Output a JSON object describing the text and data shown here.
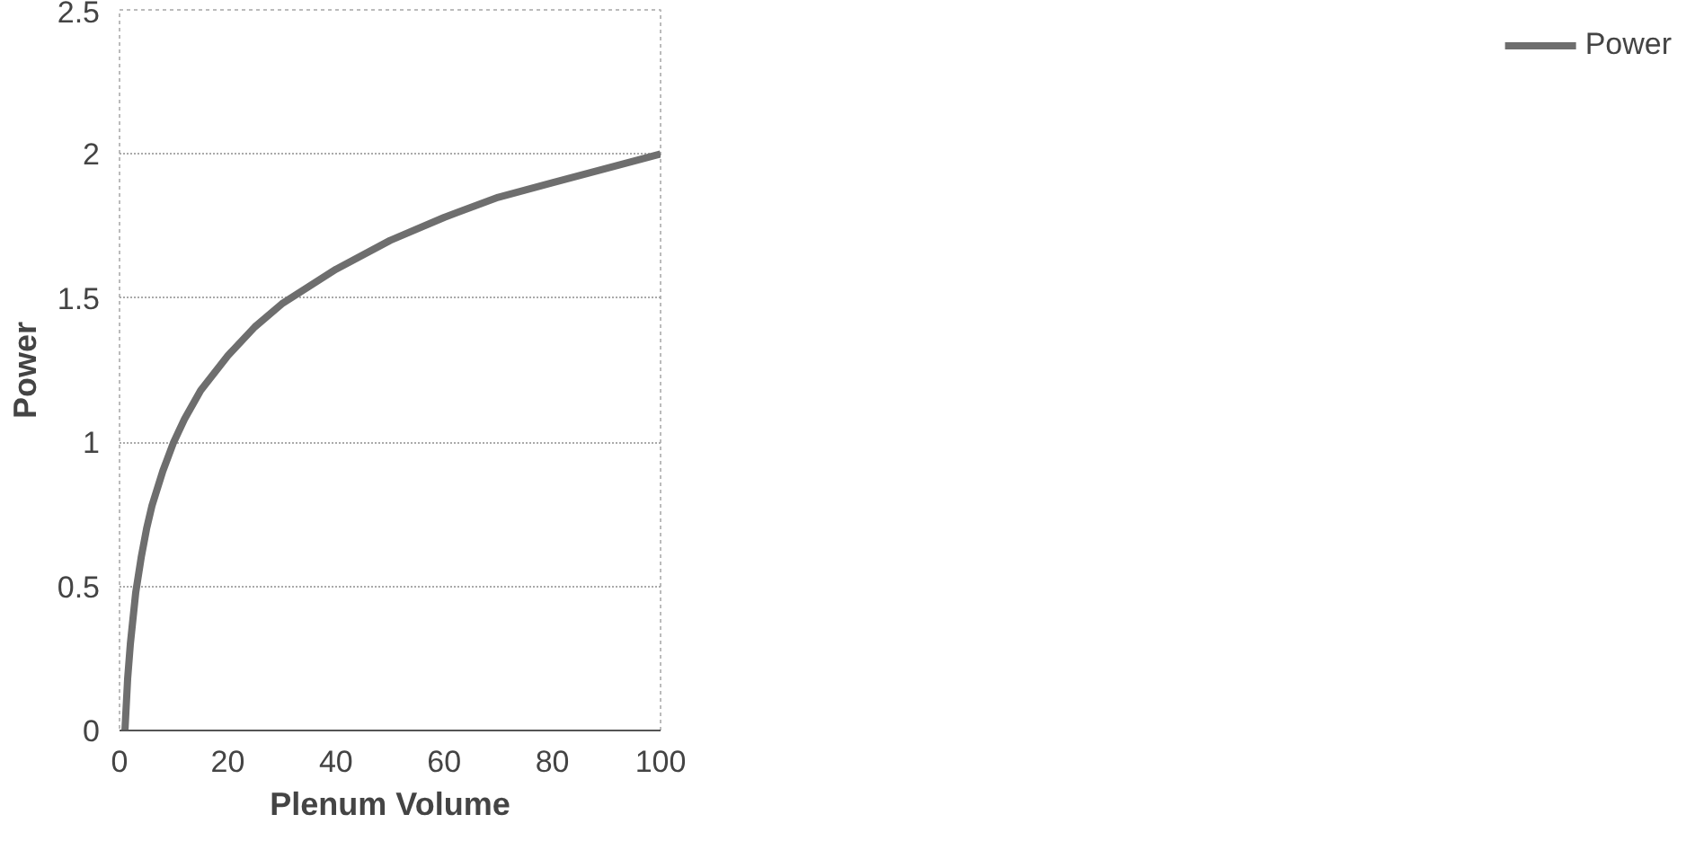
{
  "chart_data": {
    "type": "line",
    "xlabel": "Plenum Volume",
    "ylabel": "Power",
    "x": [
      1,
      1.5,
      2,
      3,
      4,
      5,
      6,
      8,
      10,
      12,
      15,
      20,
      25,
      30,
      35,
      40,
      50,
      60,
      70,
      80,
      90,
      100
    ],
    "series": [
      {
        "name": "Power",
        "color": "#6e6e6e",
        "values": [
          0,
          0.18,
          0.3,
          0.48,
          0.6,
          0.7,
          0.78,
          0.9,
          1.0,
          1.08,
          1.18,
          1.3,
          1.4,
          1.48,
          1.54,
          1.6,
          1.7,
          1.78,
          1.85,
          1.9,
          1.95,
          2.0
        ]
      }
    ],
    "xlim": [
      0,
      100
    ],
    "xticks": [
      0,
      20,
      40,
      60,
      80,
      100
    ],
    "ylim": [
      0,
      2.5
    ],
    "yticks": [
      0,
      0.5,
      1,
      1.5,
      2,
      2.5
    ],
    "grid": "y",
    "legend": "right",
    "marker": "none",
    "line_style": "solid"
  }
}
